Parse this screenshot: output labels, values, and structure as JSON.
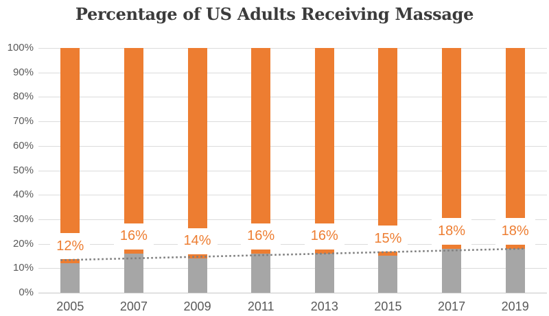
{
  "chart_data": {
    "type": "bar",
    "stacked": true,
    "title": "Percentage of US Adults Receiving Massage",
    "categories": [
      "2005",
      "2007",
      "2009",
      "2011",
      "2013",
      "2015",
      "2017",
      "2019"
    ],
    "series": [
      {
        "name": "gray-bottom-segment",
        "color": "#A6A6A6",
        "values": [
          12,
          16,
          14,
          16,
          16,
          15,
          18,
          18
        ]
      },
      {
        "name": "orange-top-segment",
        "color": "#ED7D31",
        "values": [
          88,
          84,
          86,
          84,
          84,
          85,
          82,
          82
        ]
      }
    ],
    "data_labels": [
      "12%",
      "16%",
      "14%",
      "16%",
      "16%",
      "15%",
      "18%",
      "18%"
    ],
    "y_tick_labels": [
      "0%",
      "10%",
      "20%",
      "30%",
      "40%",
      "50%",
      "60%",
      "70%",
      "80%",
      "90%",
      "100%"
    ],
    "ylim": [
      0,
      100
    ],
    "grid": true,
    "legend": "none",
    "trendline": {
      "style": "dotted",
      "color": "#7F7F7F",
      "start_value": 13.3,
      "end_value": 18.0
    },
    "colors": {
      "bar_gray": "#A6A6A6",
      "bar_orange": "#ED7D31",
      "data_label": "#ED7D31",
      "gridline": "#DBDBDB",
      "axis_line": "#C6C6C6",
      "tick_label": "#595959",
      "title": "#3B3B3B",
      "background": "#FFFFFF"
    }
  }
}
